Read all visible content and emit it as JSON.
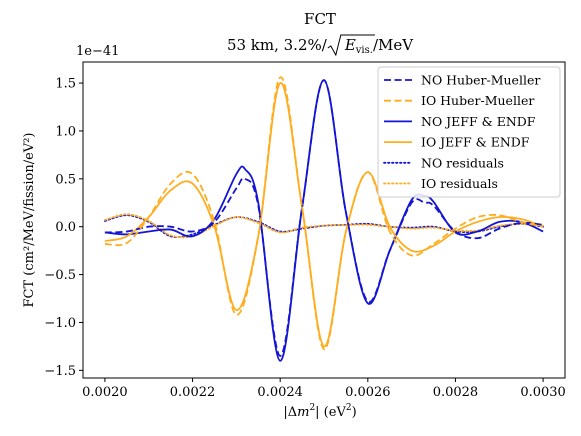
{
  "chart_data": {
    "type": "line",
    "title": "FCT",
    "subtitle_prefix": "53 km, 3.2%/",
    "subtitle_radicand": "E",
    "subtitle_sub": "vis.",
    "subtitle_suffix": "/MeV",
    "offset_label": "1e−41",
    "xlabel_prefix": "|Δ",
    "xlabel_var": "m",
    "xlabel_sup": "2",
    "xlabel_suffix": "| (eV",
    "xlabel_sup2": "2",
    "xlabel_end": ")",
    "ylabel": "FCT (cm²/MeV/fission/eV²)",
    "xlim": [
      0.00195,
      0.00305
    ],
    "ylim": [
      -1.58,
      1.72
    ],
    "x_ticks": [
      0.002,
      0.0022,
      0.0024,
      0.0026,
      0.0028,
      0.003
    ],
    "x_tick_labels": [
      "0.0020",
      "0.0022",
      "0.0024",
      "0.0026",
      "0.0028",
      "0.0030"
    ],
    "y_ticks": [
      -1.5,
      -1.0,
      -0.5,
      0.0,
      0.5,
      1.0,
      1.5
    ],
    "y_tick_labels": [
      "−1.5",
      "−1.0",
      "−0.5",
      "0.0",
      "0.5",
      "1.0",
      "1.5"
    ],
    "grid": false,
    "legend_position": "top-right",
    "colors": {
      "NO": "#1414d4",
      "IO": "#ffad1f"
    },
    "series": [
      {
        "name": "NO Huber-Mueller",
        "color": "#1414d4",
        "style": "dashed",
        "x": [
          0.002,
          0.00205,
          0.0021,
          0.00215,
          0.0022,
          0.00225,
          0.0023,
          0.00232,
          0.00235,
          0.0024,
          0.00245,
          0.0025,
          0.00255,
          0.0026,
          0.00265,
          0.0027,
          0.00273,
          0.00275,
          0.0028,
          0.00285,
          0.0029,
          0.00295,
          0.003
        ],
        "y": [
          -0.06,
          -0.05,
          0.0,
          0.0,
          -0.05,
          0.05,
          0.4,
          0.5,
          0.22,
          -1.35,
          0.2,
          1.53,
          0.15,
          -0.78,
          -0.25,
          0.25,
          0.25,
          0.22,
          -0.05,
          -0.12,
          -0.02,
          0.04,
          0.02
        ]
      },
      {
        "name": "IO Huber-Mueller",
        "color": "#ffad1f",
        "style": "dashed",
        "x": [
          0.002,
          0.00205,
          0.0021,
          0.00215,
          0.0022,
          0.00225,
          0.0023,
          0.00235,
          0.0024,
          0.00245,
          0.0025,
          0.00255,
          0.0026,
          0.00265,
          0.0027,
          0.00275,
          0.0028,
          0.00285,
          0.0029,
          0.00295,
          0.003
        ],
        "y": [
          -0.18,
          -0.17,
          0.1,
          0.45,
          0.55,
          0.05,
          -0.92,
          -0.1,
          1.56,
          0.2,
          -1.28,
          -0.05,
          0.57,
          -0.05,
          -0.3,
          -0.18,
          -0.02,
          0.1,
          0.12,
          0.05,
          0.0
        ]
      },
      {
        "name": "NO JEFF & ENDF",
        "color": "#1414d4",
        "style": "solid",
        "x": [
          0.002,
          0.00205,
          0.0021,
          0.00215,
          0.0022,
          0.00225,
          0.0023,
          0.00232,
          0.00235,
          0.0024,
          0.00245,
          0.0025,
          0.00255,
          0.0026,
          0.00265,
          0.0027,
          0.00273,
          0.00275,
          0.0028,
          0.00285,
          0.0029,
          0.00295,
          0.003
        ],
        "y": [
          -0.06,
          -0.08,
          -0.05,
          -0.03,
          -0.1,
          0.08,
          0.55,
          0.6,
          0.25,
          -1.4,
          0.2,
          1.53,
          0.15,
          -0.8,
          -0.25,
          0.28,
          0.32,
          0.26,
          -0.06,
          -0.05,
          0.05,
          0.05,
          -0.05
        ]
      },
      {
        "name": "IO JEFF & ENDF",
        "color": "#ffad1f",
        "style": "solid",
        "x": [
          0.002,
          0.00205,
          0.0021,
          0.00215,
          0.0022,
          0.00225,
          0.0023,
          0.00235,
          0.0024,
          0.00245,
          0.0025,
          0.00255,
          0.0026,
          0.00265,
          0.0027,
          0.00275,
          0.0028,
          0.00285,
          0.0029,
          0.00295,
          0.003
        ],
        "y": [
          -0.15,
          -0.1,
          0.1,
          0.38,
          0.45,
          0.0,
          -0.87,
          -0.1,
          1.5,
          0.2,
          -1.25,
          -0.05,
          0.57,
          0.0,
          -0.25,
          -0.2,
          -0.05,
          0.05,
          0.1,
          0.08,
          0.0
        ]
      },
      {
        "name": "NO residuals",
        "color": "#1414d4",
        "style": "dotted",
        "x": [
          0.002,
          0.00205,
          0.0021,
          0.00215,
          0.0022,
          0.00225,
          0.0023,
          0.00235,
          0.0024,
          0.00245,
          0.0025,
          0.00255,
          0.0026,
          0.00265,
          0.0027,
          0.00275,
          0.0028,
          0.00285,
          0.0029,
          0.00295,
          0.003
        ],
        "y": [
          0.06,
          0.12,
          0.05,
          -0.1,
          -0.08,
          0.02,
          0.1,
          0.05,
          -0.05,
          -0.02,
          0.01,
          0.02,
          0.03,
          0.0,
          -0.01,
          0.0,
          -0.05,
          -0.05,
          0.0,
          0.03,
          0.0
        ]
      },
      {
        "name": "IO residuals",
        "color": "#ffad1f",
        "style": "dotted",
        "x": [
          0.002,
          0.00205,
          0.0021,
          0.00215,
          0.0022,
          0.00225,
          0.0023,
          0.00235,
          0.0024,
          0.00245,
          0.0025,
          0.00255,
          0.0026,
          0.00265,
          0.0027,
          0.00275,
          0.0028,
          0.00285,
          0.0029,
          0.00295,
          0.003
        ],
        "y": [
          0.07,
          0.13,
          0.06,
          -0.09,
          -0.1,
          0.01,
          0.1,
          0.04,
          -0.06,
          -0.01,
          0.01,
          0.02,
          0.02,
          0.0,
          -0.02,
          -0.01,
          -0.04,
          -0.04,
          0.01,
          0.03,
          0.01
        ]
      }
    ]
  }
}
